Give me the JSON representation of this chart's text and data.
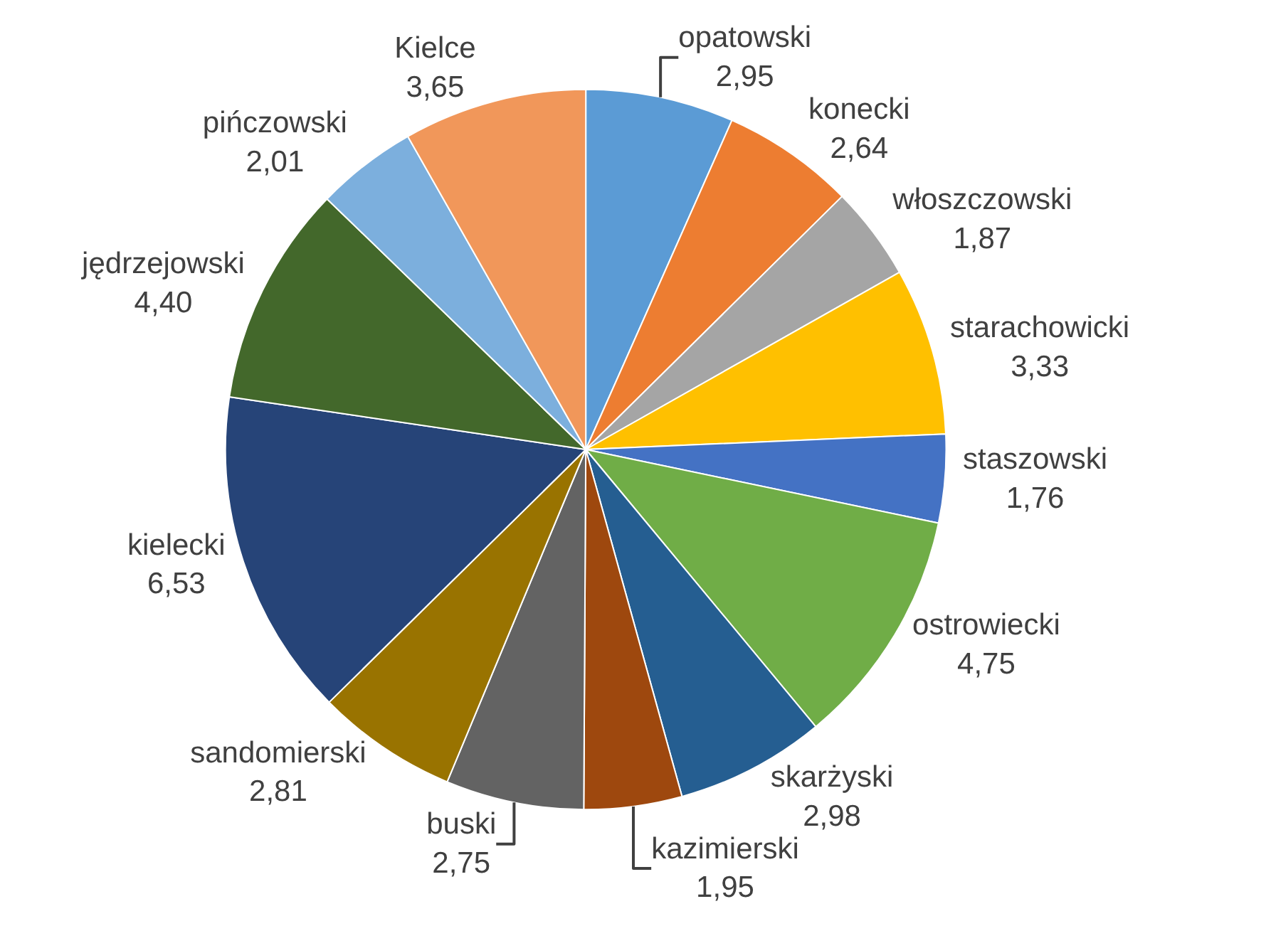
{
  "chart_data": {
    "type": "pie",
    "categories": [
      "opatowski",
      "konecki",
      "włoszczowski",
      "starachowicki",
      "staszowski",
      "ostrowiecki",
      "skarżyski",
      "kazimierski",
      "buski",
      "sandomierski",
      "kielecki",
      "jędrzejowski",
      "pińczowski",
      "Kielce"
    ],
    "values": [
      2.95,
      2.64,
      1.87,
      3.33,
      1.76,
      4.75,
      2.98,
      1.95,
      2.75,
      2.81,
      6.53,
      4.4,
      2.01,
      3.65
    ],
    "value_labels": [
      "2,95",
      "2,64",
      "1,87",
      "3,33",
      "1,76",
      "4,75",
      "2,98",
      "1,95",
      "2,75",
      "2,81",
      "6,53",
      "4,40",
      "2,01",
      "3,65"
    ],
    "colors": [
      "#5b9bd5",
      "#ed7d31",
      "#a5a5a5",
      "#ffc000",
      "#4472c4",
      "#70ad47",
      "#255e91",
      "#9e480e",
      "#636363",
      "#997300",
      "#264478",
      "#43682b",
      "#7cafdd",
      "#f1975a"
    ],
    "legend": false
  }
}
